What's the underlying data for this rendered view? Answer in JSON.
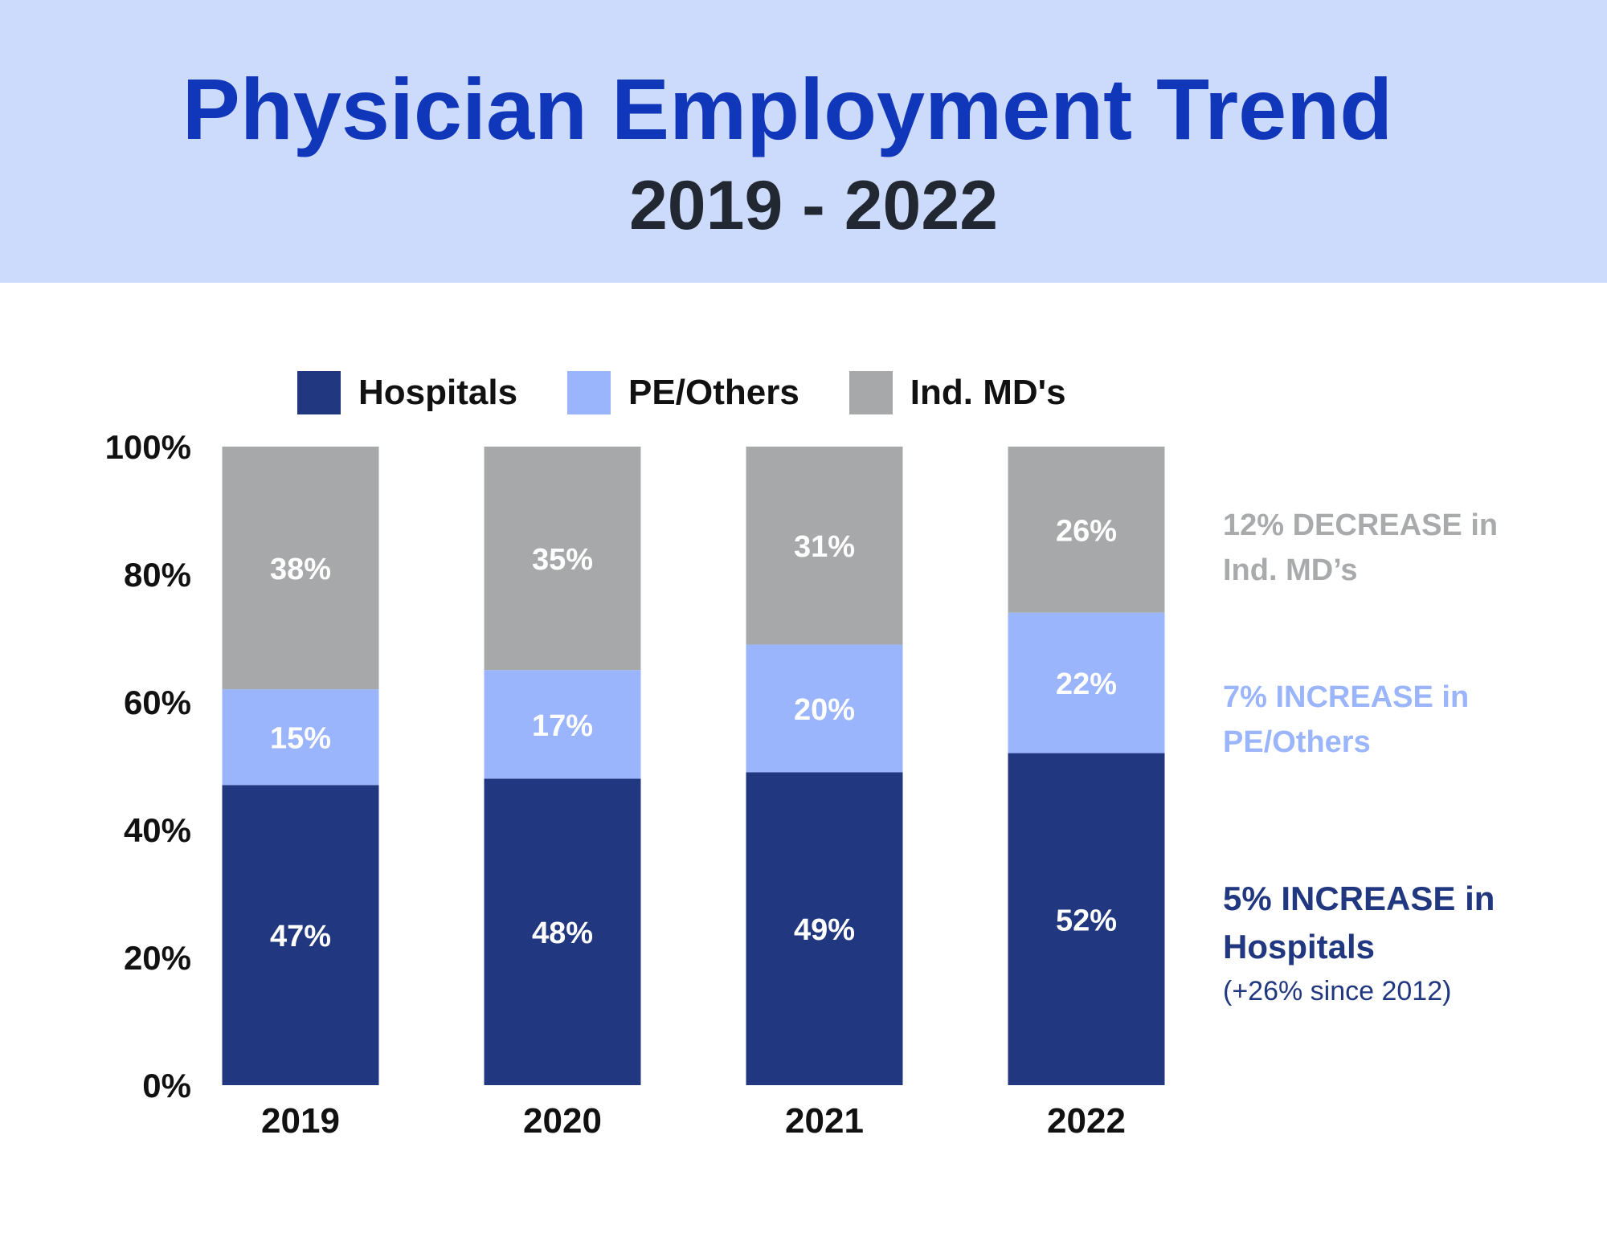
{
  "colors": {
    "header_bg": "#ccdafb",
    "title": "#1036b9",
    "hospitals": "#21377f",
    "pe_others": "#9ab5fb",
    "ind_mds": "#a7a8aa",
    "decrease_note": "#a9aaac",
    "pe_note": "#9ab5fb",
    "hosp_note": "#21377f"
  },
  "header": {
    "title": "Physician Employment Trend",
    "subtitle": "2019 - 2022"
  },
  "legend": [
    {
      "name": "Hospitals",
      "color": "#21377f"
    },
    {
      "name": "PE/Others",
      "color": "#9ab5fb"
    },
    {
      "name": "Ind. MD's",
      "color": "#a7a8aa"
    }
  ],
  "annotations": {
    "ind": {
      "line1": "12% DECREASE in",
      "line2": "Ind. MD’s"
    },
    "pe": {
      "line1": "7% INCREASE in",
      "line2": "PE/Others"
    },
    "hosp": {
      "line1": "5% INCREASE in",
      "line2": "Hospitals",
      "sub": "(+26% since 2012)"
    }
  },
  "chart_data": {
    "type": "bar",
    "stacked": true,
    "categories": [
      "2019",
      "2020",
      "2021",
      "2022"
    ],
    "series": [
      {
        "name": "Hospitals",
        "values": [
          47,
          48,
          49,
          52
        ],
        "labels": [
          "47%",
          "48%",
          "49%",
          "52%"
        ]
      },
      {
        "name": "PE/Others",
        "values": [
          15,
          17,
          20,
          22
        ],
        "labels": [
          "15%",
          "17%",
          "20%",
          "22%"
        ]
      },
      {
        "name": "Ind. MD's",
        "values": [
          38,
          35,
          31,
          26
        ],
        "labels": [
          "38%",
          "35%",
          "31%",
          "26%"
        ]
      }
    ],
    "yticks": [
      "0%",
      "20%",
      "40%",
      "60%",
      "80%",
      "100%"
    ],
    "ylim": [
      0,
      100
    ],
    "legend_position": "top",
    "grid": false
  }
}
